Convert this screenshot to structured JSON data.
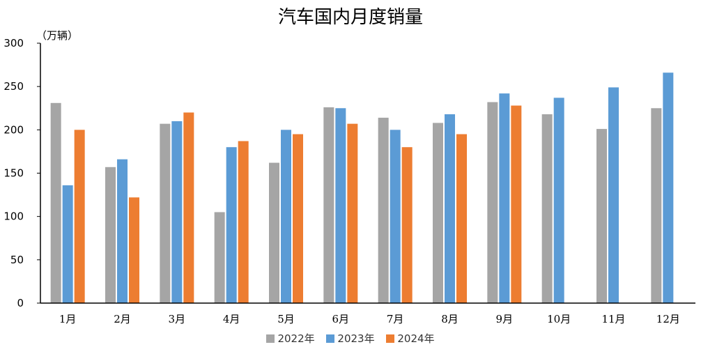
{
  "chart_data": {
    "type": "bar",
    "title": "汽车国内月度销量",
    "ylabel": "（万辆）",
    "xlabel": "",
    "ylim": [
      0,
      300
    ],
    "yticks": [
      0,
      50,
      100,
      150,
      200,
      250,
      300
    ],
    "grid": false,
    "legend_position": "bottom",
    "categories": [
      "1月",
      "2月",
      "3月",
      "4月",
      "5月",
      "6月",
      "7月",
      "8月",
      "9月",
      "10月",
      "11月",
      "12月"
    ],
    "series": [
      {
        "name": "2022年",
        "color": "#a5a5a5",
        "values": [
          231,
          157,
          207,
          105,
          162,
          226,
          214,
          208,
          232,
          218,
          201,
          225
        ]
      },
      {
        "name": "2023年",
        "color": "#5b9bd5",
        "values": [
          136,
          166,
          210,
          180,
          200,
          225,
          200,
          218,
          242,
          237,
          249,
          266
        ]
      },
      {
        "name": "2024年",
        "color": "#ed7d31",
        "values": [
          200,
          122,
          220,
          187,
          195,
          207,
          180,
          195,
          228,
          null,
          null,
          null
        ]
      }
    ]
  }
}
